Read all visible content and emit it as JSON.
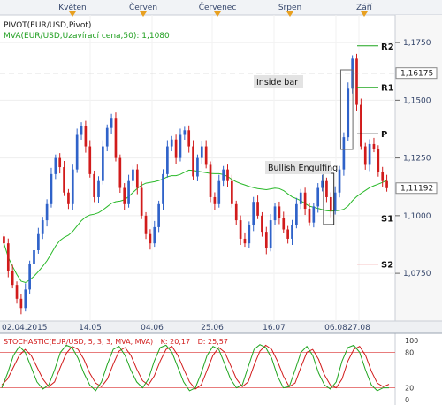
{
  "months": [
    "Květen",
    "Červen",
    "Červenec",
    "Srpen",
    "Září"
  ],
  "header": {
    "pivot_label": "PIVOT(EUR/USD,Pivot)",
    "ma_label": "MVA(EUR/USD,Uzavírací cena,50): 1,1080"
  },
  "annotations": {
    "inside_bar": "Inside bar",
    "bullish_engulfing": "Bullish Engulfing"
  },
  "pivot_levels": [
    {
      "name": "R2",
      "value": 1.1736
    },
    {
      "name": "R1",
      "value": 1.1556
    },
    {
      "name": "P",
      "value": 1.1355
    },
    {
      "name": "S1",
      "value": 1.099
    },
    {
      "name": "S2",
      "value": 1.079
    }
  ],
  "price_axis": {
    "ticks": [
      "1,1750",
      "1,1500",
      "1,1250",
      "1,1000",
      "1,0750"
    ],
    "tick_values": [
      1.175,
      1.15,
      1.125,
      1.1,
      1.075
    ],
    "min": 1.0555,
    "max": 1.185,
    "current_line_label": "1,16175",
    "current_line_value": 1.16175,
    "last_price_label": "1,11192",
    "last_price_value": 1.11192
  },
  "date_axis": [
    "02.04.2015",
    "14.05",
    "04.06",
    "25.06",
    "16.07",
    "06.08",
    "27.08"
  ],
  "stochastic": {
    "label": "STOCHASTIC(EUR/USD, 5, 3, 3, MVA, MVA)",
    "k_label": "K: 20,17",
    "d_label": "D: 25,57",
    "levels": [
      "100",
      "80",
      "20",
      "0"
    ],
    "level_values": [
      100,
      80,
      20,
      0
    ],
    "k": [
      20,
      45,
      75,
      90,
      80,
      55,
      30,
      18,
      25,
      50,
      80,
      92,
      88,
      70,
      45,
      25,
      15,
      30,
      60,
      85,
      90,
      75,
      50,
      30,
      20,
      35,
      65,
      88,
      92,
      80,
      55,
      30,
      15,
      20,
      45,
      75,
      90,
      85,
      60,
      35,
      20,
      25,
      55,
      85,
      93,
      88,
      70,
      40,
      20,
      22,
      50,
      80,
      90,
      75,
      45,
      25,
      18,
      30,
      65,
      88,
      92,
      80,
      50,
      25,
      15,
      20,
      20
    ],
    "d": [
      25,
      35,
      55,
      75,
      85,
      75,
      55,
      35,
      22,
      30,
      55,
      78,
      90,
      85,
      68,
      45,
      28,
      22,
      35,
      60,
      82,
      88,
      75,
      52,
      32,
      25,
      40,
      65,
      85,
      90,
      75,
      52,
      30,
      18,
      25,
      50,
      75,
      88,
      80,
      58,
      35,
      22,
      30,
      58,
      82,
      92,
      85,
      65,
      40,
      22,
      28,
      55,
      80,
      85,
      68,
      42,
      25,
      20,
      35,
      65,
      85,
      90,
      75,
      48,
      28,
      22,
      26
    ]
  },
  "chart_data": {
    "type": "candlestick",
    "instrument": "EUR/USD",
    "x": {
      "first_date": "02.04.2015",
      "tick_labels": [
        "02.04.2015",
        "14.05",
        "04.06",
        "25.06",
        "16.07",
        "06.08",
        "27.08"
      ]
    },
    "ylim": [
      1.0555,
      1.185
    ],
    "closes": [
      1.088,
      1.076,
      1.07,
      1.064,
      1.06,
      1.068,
      1.079,
      1.085,
      1.092,
      1.098,
      1.105,
      1.118,
      1.125,
      1.121,
      1.11,
      1.105,
      1.12,
      1.135,
      1.139,
      1.13,
      1.118,
      1.108,
      1.115,
      1.13,
      1.138,
      1.142,
      1.125,
      1.112,
      1.105,
      1.115,
      1.12,
      1.112,
      1.1,
      1.092,
      1.088,
      1.095,
      1.105,
      1.118,
      1.13,
      1.133,
      1.125,
      1.135,
      1.137,
      1.13,
      1.117,
      1.125,
      1.13,
      1.122,
      1.108,
      1.105,
      1.115,
      1.12,
      1.115,
      1.105,
      1.098,
      1.09,
      1.088,
      1.096,
      1.106,
      1.1,
      1.093,
      1.086,
      1.098,
      1.104,
      1.099,
      1.094,
      1.09,
      1.096,
      1.105,
      1.11,
      1.103,
      1.097,
      1.104,
      1.112,
      1.115,
      1.108,
      1.102,
      1.11,
      1.12,
      1.134,
      1.155,
      1.168,
      1.148,
      1.13,
      1.122,
      1.131,
      1.129,
      1.119,
      1.115,
      1.1119
    ],
    "pivot_levels": {
      "R2": 1.1736,
      "R1": 1.1556,
      "P": 1.1355,
      "S1": 1.099,
      "S2": 1.079
    },
    "moving_average": {
      "name": "MVA(EUR/USD,Uzavírací cena,50)",
      "last": 1.108
    },
    "stochastic": {
      "k": 20.17,
      "d": 25.57,
      "overbought": 80,
      "oversold": 20
    }
  },
  "colors": {
    "bull": "#2f62c9",
    "bear": "#d11b1b",
    "pivot": "#e01818",
    "pivot_r": "#1fa51f",
    "ma": "#28b828",
    "month_marker": "#e8a020",
    "label_bg": "#e2e2e2",
    "axis_text": "#34456a"
  }
}
